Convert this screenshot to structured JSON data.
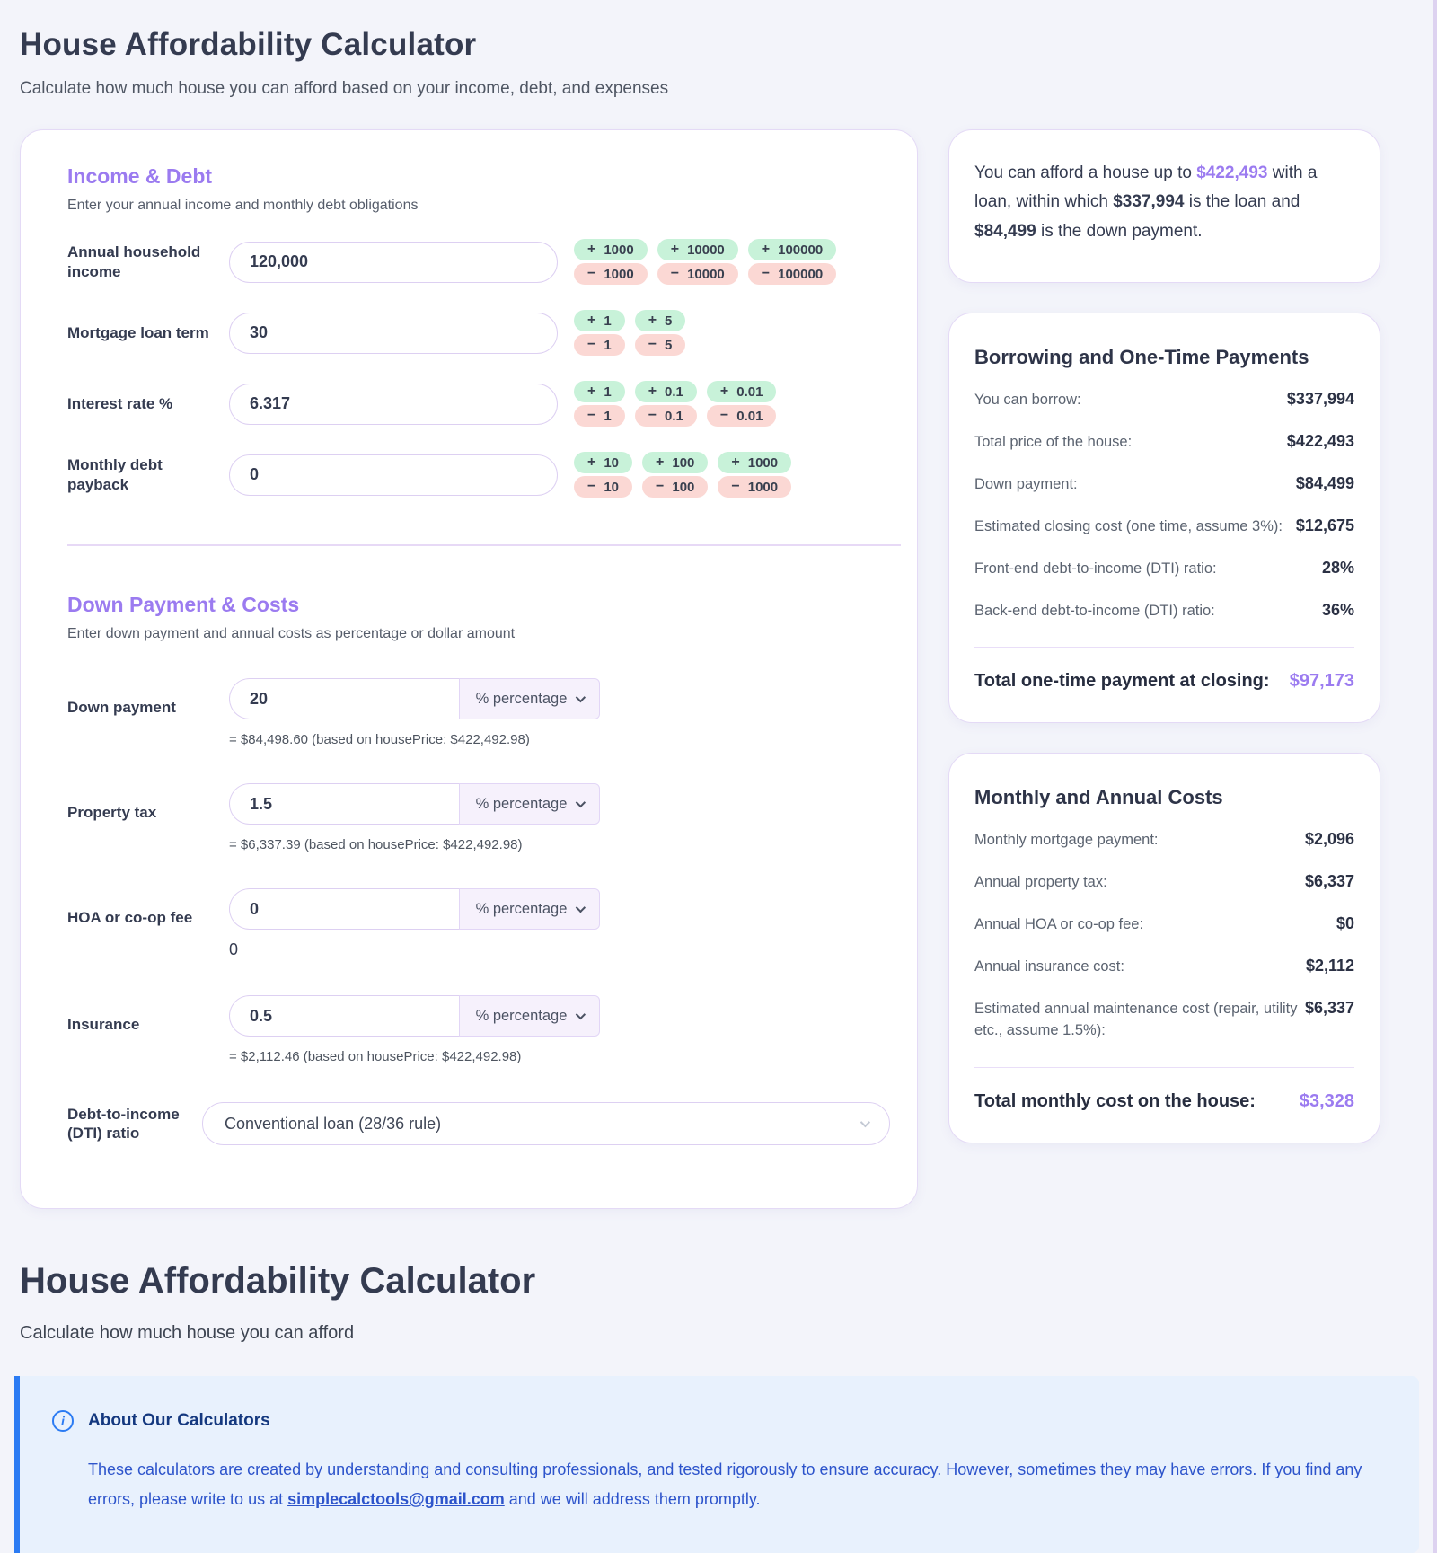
{
  "page": {
    "title": "House Affordability Calculator",
    "subtitle": "Calculate how much house you can afford based on your income, debt, and expenses"
  },
  "icons": {
    "plus": "+",
    "minus": "−",
    "info": "i"
  },
  "colors": {
    "accent_purple": "#9b7bf0",
    "stepper_green": "#c8f2d9",
    "stepper_pink": "#fbd8d4",
    "info_blue": "#2b7bf3",
    "page_bg": "#f3f4fa"
  },
  "income": {
    "title": "Income & Debt",
    "subtitle": "Enter your annual income and monthly debt obligations",
    "rows": [
      {
        "label": "Annual household income",
        "value": "120,000",
        "steppers": [
          "1000",
          "10000",
          "100000"
        ]
      },
      {
        "label": "Mortgage loan term",
        "value": "30",
        "steppers": [
          "1",
          "5"
        ]
      },
      {
        "label": "Interest rate %",
        "value": "6.317",
        "steppers": [
          "1",
          "0.1",
          "0.01"
        ]
      },
      {
        "label": "Monthly debt payback",
        "value": "0",
        "steppers": [
          "10",
          "100",
          "1000"
        ]
      }
    ]
  },
  "down_payment": {
    "title": "Down Payment & Costs",
    "subtitle": "Enter down payment and annual costs as percentage or dollar amount",
    "rows": [
      {
        "label": "Down payment",
        "value": "20",
        "unit": "% percentage",
        "hint": "= $84,498.60 (based on housePrice: $422,492.98)"
      },
      {
        "label": "Property tax",
        "value": "1.5",
        "unit": "% percentage",
        "hint": "= $6,337.39 (based on housePrice: $422,492.98)"
      },
      {
        "label": "HOA or co-op fee",
        "value": "0",
        "unit": "% percentage",
        "hint": "0"
      },
      {
        "label": "Insurance",
        "value": "0.5",
        "unit": "% percentage",
        "hint": "= $2,112.46 (based on housePrice: $422,492.98)"
      }
    ],
    "dti": {
      "label": "Debt-to-income (DTI) ratio",
      "value": "Conventional loan (28/36 rule)"
    }
  },
  "summary": {
    "t1": "You can afford a house up to ",
    "v1": "$422,493",
    "t2": " with a loan, within which ",
    "v2": "$337,994",
    "t3": " is the loan and ",
    "v3": "$84,499",
    "t4": " is the down payment."
  },
  "borrowing": {
    "title": "Borrowing and One-Time Payments",
    "rows": [
      {
        "label": "You can borrow:",
        "value": "$337,994"
      },
      {
        "label": "Total price of the house:",
        "value": "$422,493"
      },
      {
        "label": "Down payment:",
        "value": "$84,499"
      },
      {
        "label": "Estimated closing cost (one time, assume 3%):",
        "value": "$12,675"
      },
      {
        "label": "Front-end debt-to-income (DTI) ratio:",
        "value": "28%"
      },
      {
        "label": "Back-end debt-to-income (DTI) ratio:",
        "value": "36%"
      }
    ],
    "total_label": "Total one-time payment at closing:",
    "total_value": "$97,173"
  },
  "monthly": {
    "title": "Monthly and Annual Costs",
    "rows": [
      {
        "label": "Monthly mortgage payment:",
        "value": "$2,096"
      },
      {
        "label": "Annual property tax:",
        "value": "$6,337"
      },
      {
        "label": "Annual HOA or co-op fee:",
        "value": "$0"
      },
      {
        "label": "Annual insurance cost:",
        "value": "$2,112"
      },
      {
        "label": "Estimated annual maintenance cost (repair, utility etc., assume 1.5%):",
        "value": "$6,337"
      }
    ],
    "total_label": "Total monthly cost on the house:",
    "total_value": "$3,328"
  },
  "footer": {
    "title": "House Affordability Calculator",
    "subtitle": "Calculate how much house you can afford"
  },
  "about": {
    "title": "About Our Calculators",
    "body_before": "These calculators are created by understanding and consulting professionals, and tested rigorously to ensure accuracy. However, sometimes they may have errors. If you find any errors, please write to us at ",
    "link": "simplecalctools@gmail.com",
    "body_after": " and we will address them promptly."
  }
}
